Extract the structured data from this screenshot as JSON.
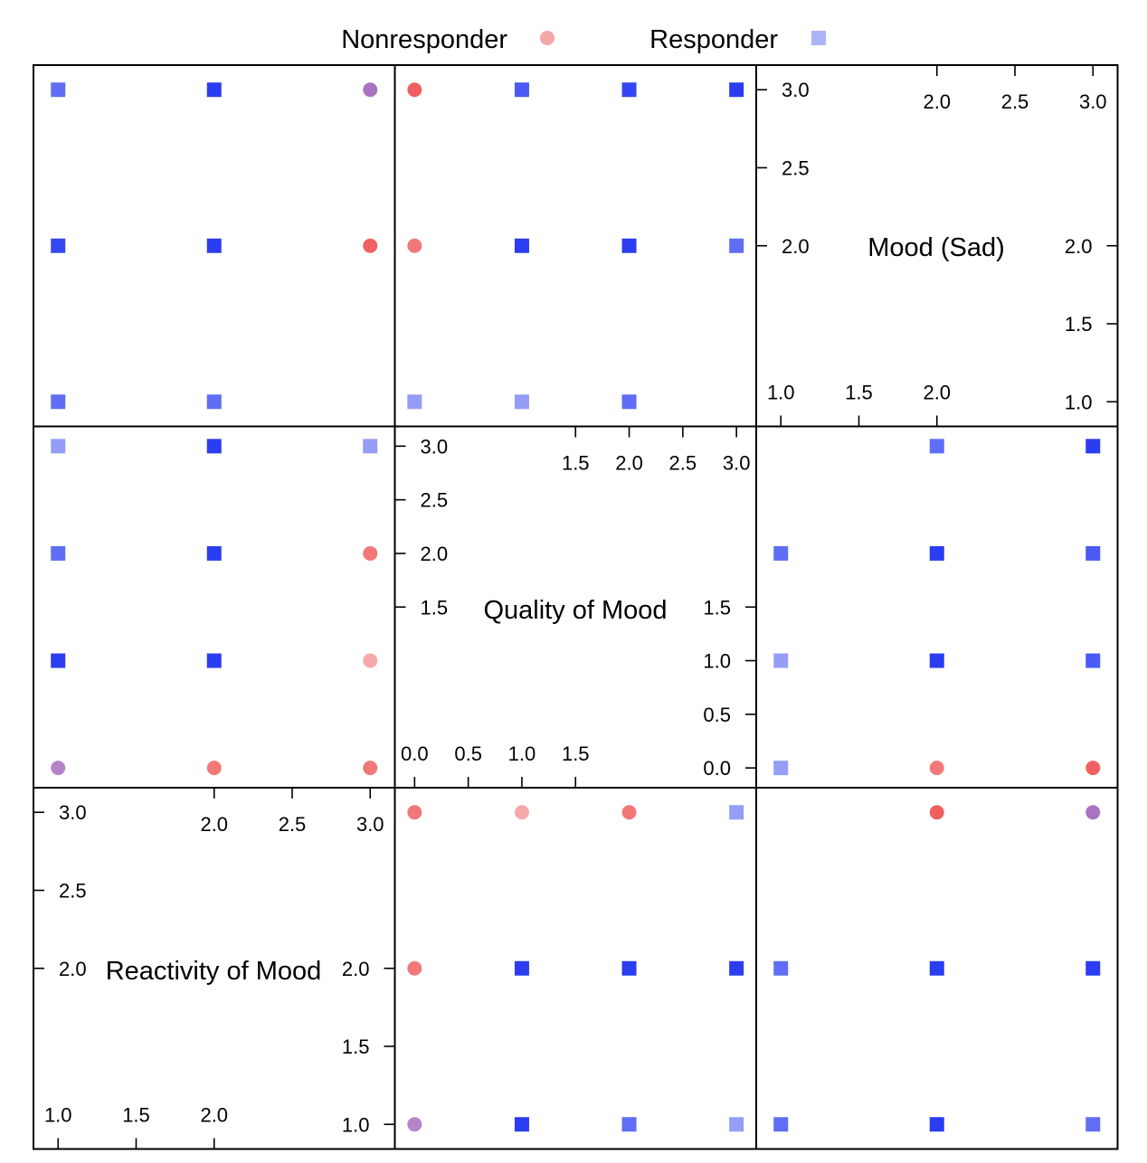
{
  "chart_data": {
    "type": "scatter",
    "layout": "scatterplot-matrix",
    "legend": {
      "placement": "top-center",
      "entries": [
        {
          "name": "Nonresponder",
          "shape": "circle",
          "color": "#f07f7f"
        },
        {
          "name": "Responder",
          "shape": "square",
          "color": "#8a93f5"
        }
      ]
    },
    "colors": {
      "nonresponder": "#f06060",
      "responder": "#2a3df0",
      "overlap": "#9b59b6"
    },
    "variables": [
      {
        "name": "Reactivity of Mood",
        "range": [
          0.9,
          3.1
        ],
        "ticks_lower": [
          "1.0",
          "1.5",
          "2.0"
        ],
        "ticks_upper": [
          "2.0",
          "2.5",
          "3.0"
        ],
        "ticks_lower_values": [
          1.0,
          1.5,
          2.0
        ],
        "ticks_upper_values": [
          2.0,
          2.5,
          3.0
        ]
      },
      {
        "name": "Quality of Mood",
        "range": [
          -0.1,
          3.1
        ],
        "ticks_lower": [
          "0.0",
          "0.5",
          "1.0",
          "1.5"
        ],
        "ticks_upper": [
          "1.5",
          "2.0",
          "2.5",
          "3.0"
        ],
        "ticks_lower_values": [
          0.0,
          0.5,
          1.0,
          1.5
        ],
        "ticks_upper_values": [
          1.5,
          2.0,
          2.5,
          3.0
        ]
      },
      {
        "name": "Mood (Sad)",
        "range": [
          0.9,
          3.1
        ],
        "ticks_lower": [
          "1.0",
          "1.5",
          "2.0"
        ],
        "ticks_upper": [
          "2.0",
          "2.5",
          "3.0"
        ],
        "ticks_lower_values": [
          1.0,
          1.5,
          2.0
        ],
        "ticks_upper_values": [
          2.0,
          2.5,
          3.0
        ]
      }
    ],
    "panels": [
      {
        "xvar": 0,
        "yvar": 2,
        "points": [
          {
            "x": 1,
            "y": 3,
            "g": "R",
            "a": 0.75
          },
          {
            "x": 2,
            "y": 3,
            "g": "R",
            "a": 1
          },
          {
            "x": 3,
            "y": 3,
            "g": "O",
            "a": 0.85
          },
          {
            "x": 1,
            "y": 2,
            "g": "R",
            "a": 0.95
          },
          {
            "x": 2,
            "y": 2,
            "g": "R",
            "a": 1
          },
          {
            "x": 3,
            "y": 2,
            "g": "N",
            "a": 1
          },
          {
            "x": 1,
            "y": 1,
            "g": "R",
            "a": 0.75
          },
          {
            "x": 2,
            "y": 1,
            "g": "R",
            "a": 0.75
          }
        ]
      },
      {
        "xvar": 1,
        "yvar": 2,
        "points": [
          {
            "x": 0,
            "y": 3,
            "g": "N",
            "a": 1
          },
          {
            "x": 1,
            "y": 3,
            "g": "R",
            "a": 0.85
          },
          {
            "x": 2,
            "y": 3,
            "g": "R",
            "a": 0.95
          },
          {
            "x": 3,
            "y": 3,
            "g": "R",
            "a": 1
          },
          {
            "x": 0,
            "y": 2,
            "g": "N",
            "a": 0.85
          },
          {
            "x": 1,
            "y": 2,
            "g": "R",
            "a": 1
          },
          {
            "x": 2,
            "y": 2,
            "g": "R",
            "a": 1
          },
          {
            "x": 3,
            "y": 2,
            "g": "R",
            "a": 0.75
          },
          {
            "x": 0,
            "y": 1,
            "g": "R",
            "a": 0.5
          },
          {
            "x": 1,
            "y": 1,
            "g": "R",
            "a": 0.5
          },
          {
            "x": 2,
            "y": 1,
            "g": "R",
            "a": 0.75
          }
        ]
      },
      {
        "xvar": 0,
        "yvar": 1,
        "points": [
          {
            "x": 1,
            "y": 3,
            "g": "R",
            "a": 0.5
          },
          {
            "x": 2,
            "y": 3,
            "g": "R",
            "a": 1
          },
          {
            "x": 3,
            "y": 3,
            "g": "R",
            "a": 0.5
          },
          {
            "x": 1,
            "y": 2,
            "g": "R",
            "a": 0.75
          },
          {
            "x": 2,
            "y": 2,
            "g": "R",
            "a": 1
          },
          {
            "x": 3,
            "y": 2,
            "g": "N",
            "a": 0.85
          },
          {
            "x": 1,
            "y": 1,
            "g": "R",
            "a": 1
          },
          {
            "x": 2,
            "y": 1,
            "g": "R",
            "a": 1
          },
          {
            "x": 3,
            "y": 1,
            "g": "N",
            "a": 0.55
          },
          {
            "x": 1,
            "y": 0,
            "g": "O",
            "a": 0.75
          },
          {
            "x": 2,
            "y": 0,
            "g": "N",
            "a": 0.85
          },
          {
            "x": 3,
            "y": 0,
            "g": "N",
            "a": 0.85
          }
        ]
      },
      {
        "xvar": 2,
        "yvar": 1,
        "points": [
          {
            "x": 2,
            "y": 3,
            "g": "R",
            "a": 0.75
          },
          {
            "x": 3,
            "y": 3,
            "g": "R",
            "a": 1
          },
          {
            "x": 1,
            "y": 2,
            "g": "R",
            "a": 0.75
          },
          {
            "x": 2,
            "y": 2,
            "g": "R",
            "a": 1
          },
          {
            "x": 3,
            "y": 2,
            "g": "R",
            "a": 0.85
          },
          {
            "x": 1,
            "y": 1,
            "g": "R",
            "a": 0.5
          },
          {
            "x": 2,
            "y": 1,
            "g": "R",
            "a": 1
          },
          {
            "x": 3,
            "y": 1,
            "g": "R",
            "a": 0.85
          },
          {
            "x": 1,
            "y": 0,
            "g": "R",
            "a": 0.5
          },
          {
            "x": 2,
            "y": 0,
            "g": "N",
            "a": 0.85
          },
          {
            "x": 3,
            "y": 0,
            "g": "N",
            "a": 1
          }
        ]
      },
      {
        "xvar": 1,
        "yvar": 0,
        "points": [
          {
            "x": 0,
            "y": 3,
            "g": "N",
            "a": 0.85
          },
          {
            "x": 1,
            "y": 3,
            "g": "N",
            "a": 0.55
          },
          {
            "x": 2,
            "y": 3,
            "g": "N",
            "a": 0.85
          },
          {
            "x": 3,
            "y": 3,
            "g": "R",
            "a": 0.5
          },
          {
            "x": 0,
            "y": 2,
            "g": "N",
            "a": 0.85
          },
          {
            "x": 1,
            "y": 2,
            "g": "R",
            "a": 1
          },
          {
            "x": 2,
            "y": 2,
            "g": "R",
            "a": 1
          },
          {
            "x": 3,
            "y": 2,
            "g": "R",
            "a": 1
          },
          {
            "x": 0,
            "y": 1,
            "g": "O",
            "a": 0.75
          },
          {
            "x": 1,
            "y": 1,
            "g": "R",
            "a": 1
          },
          {
            "x": 2,
            "y": 1,
            "g": "R",
            "a": 0.75
          },
          {
            "x": 3,
            "y": 1,
            "g": "R",
            "a": 0.5
          }
        ]
      },
      {
        "xvar": 2,
        "yvar": 0,
        "points": [
          {
            "x": 2,
            "y": 3,
            "g": "N",
            "a": 1
          },
          {
            "x": 3,
            "y": 3,
            "g": "O",
            "a": 0.85
          },
          {
            "x": 1,
            "y": 2,
            "g": "R",
            "a": 0.75
          },
          {
            "x": 2,
            "y": 2,
            "g": "R",
            "a": 1
          },
          {
            "x": 3,
            "y": 2,
            "g": "R",
            "a": 1
          },
          {
            "x": 1,
            "y": 1,
            "g": "R",
            "a": 0.75
          },
          {
            "x": 2,
            "y": 1,
            "g": "R",
            "a": 1
          },
          {
            "x": 3,
            "y": 1,
            "g": "R",
            "a": 0.75
          }
        ]
      }
    ]
  }
}
